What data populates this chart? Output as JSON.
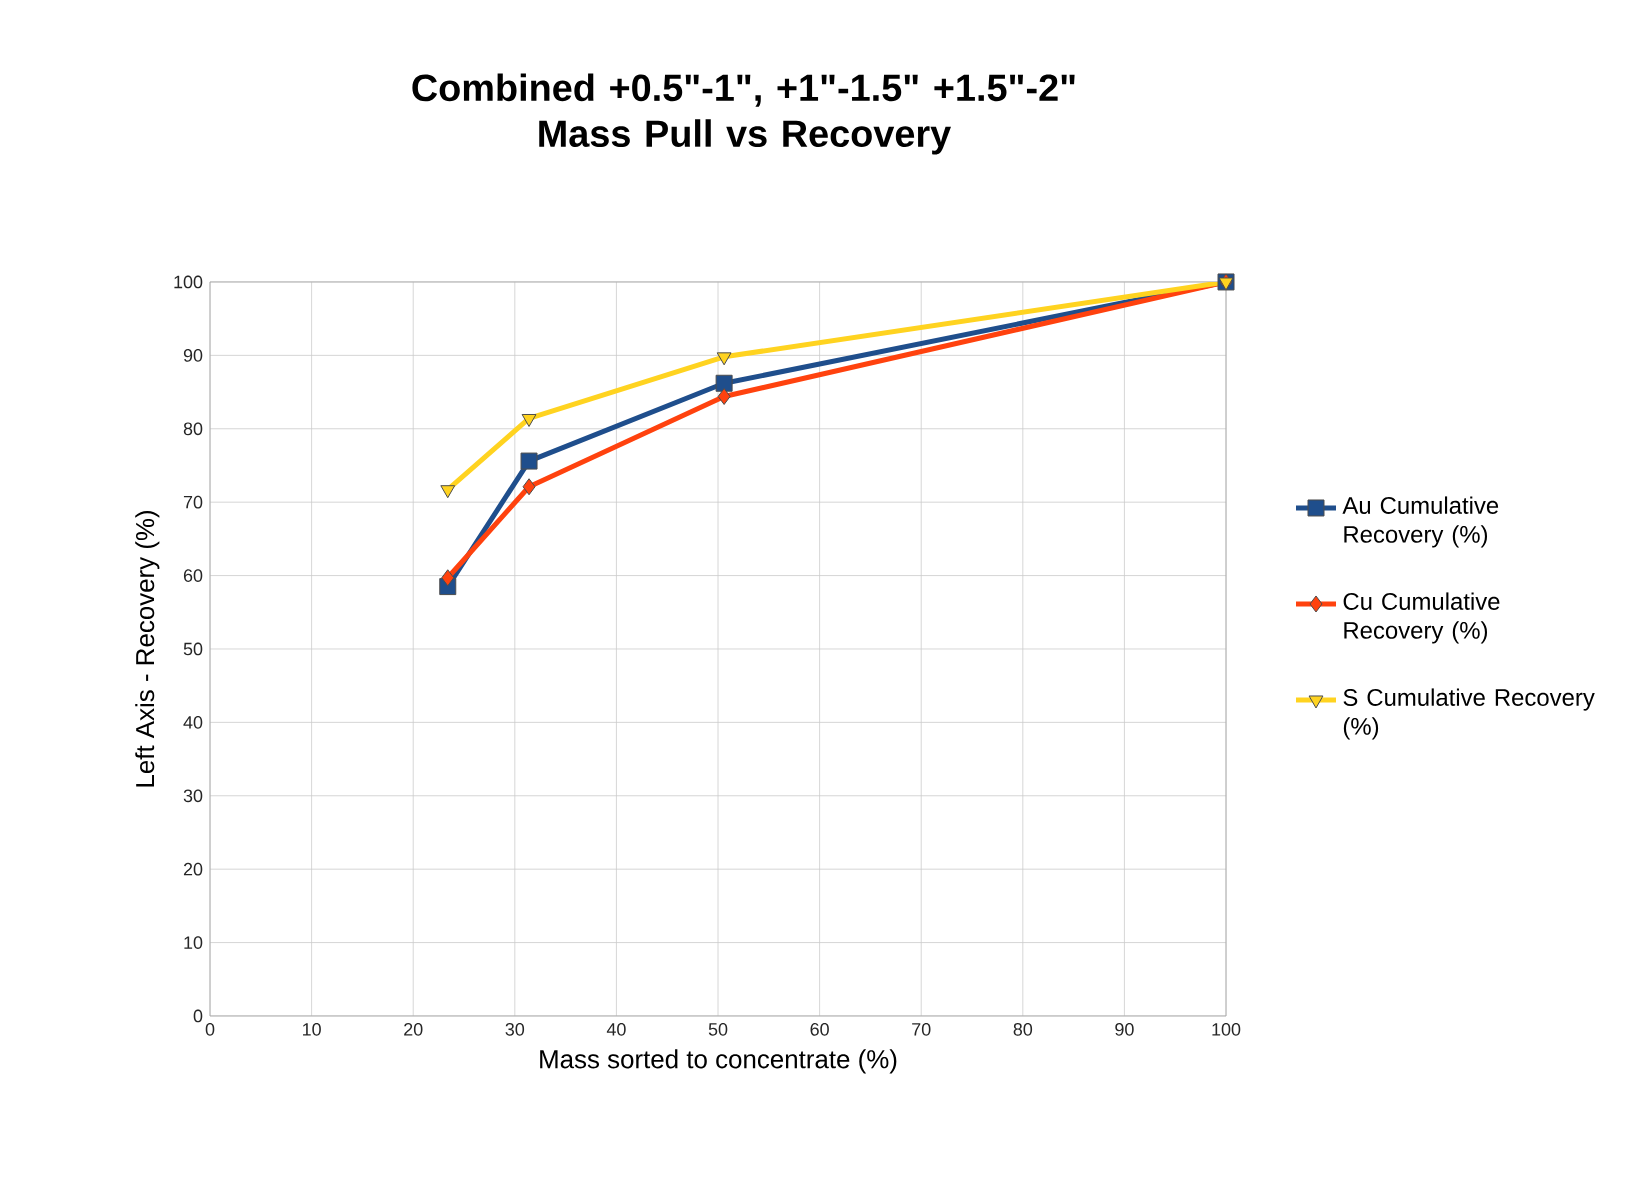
{
  "chart_data": {
    "type": "line",
    "title": "Combined +0.5\"-1\", +1\"-1.5\" +1.5\"-2\"\nMass Pull vs Recovery",
    "xlabel": "Mass sorted to concentrate (%)",
    "ylabel": "Left Axis - Recovery (%)",
    "x": [
      23.4,
      31.4,
      50.6,
      100
    ],
    "series": [
      {
        "name": "Au Cumulative Recovery (%)",
        "color": "#1f4e8c",
        "marker": "square",
        "values": [
          58.5,
          75.6,
          86.2,
          100
        ]
      },
      {
        "name": "Cu Cumulative Recovery (%)",
        "color": "#ff420e",
        "marker": "diamond",
        "values": [
          59.7,
          72.1,
          84.4,
          100
        ]
      },
      {
        "name": "S Cumulative Recovery (%)",
        "color": "#ffd320",
        "marker": "triangle",
        "values": [
          71.7,
          81.4,
          89.8,
          100
        ]
      }
    ],
    "xlim": [
      0,
      100
    ],
    "ylim": [
      0,
      100
    ],
    "xticks": [
      0,
      10,
      20,
      30,
      40,
      50,
      60,
      70,
      80,
      90,
      100
    ],
    "yticks": [
      0,
      10,
      20,
      30,
      40,
      50,
      60,
      70,
      80,
      90,
      100
    ],
    "grid": true,
    "legend": "right",
    "line_style": "solid"
  }
}
